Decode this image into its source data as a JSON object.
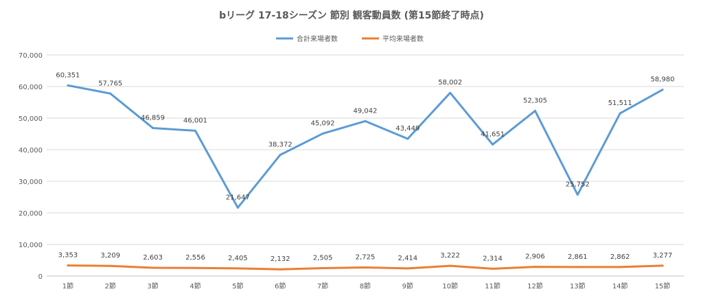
{
  "chart_data": {
    "type": "line",
    "title": "bリーグ 17-18シーズン 節別 観客動員数 (第15節終了時点)",
    "categories": [
      "1節",
      "2節",
      "3節",
      "4節",
      "5節",
      "6節",
      "7節",
      "8節",
      "9節",
      "10節",
      "11節",
      "12節",
      "13節",
      "14節",
      "15節"
    ],
    "series": [
      {
        "name": "合計来場者数",
        "color": "#5B9BD5",
        "values": [
          60351,
          57765,
          46859,
          46001,
          21647,
          38372,
          45092,
          49042,
          43449,
          58002,
          41651,
          52305,
          25752,
          51511,
          58980
        ],
        "labels": [
          "60,351",
          "57,765",
          "46,859",
          "46,001",
          "21,647",
          "38,372",
          "45,092",
          "49,042",
          "43,449",
          "58,002",
          "41,651",
          "52,305",
          "25,752",
          "51,511",
          "58,980"
        ]
      },
      {
        "name": "平均来場者数",
        "color": "#ED7D31",
        "values": [
          3353,
          3209,
          2603,
          2556,
          2405,
          2132,
          2505,
          2725,
          2414,
          3222,
          2314,
          2906,
          2861,
          2862,
          3277
        ],
        "labels": [
          "3,353",
          "3,209",
          "2,603",
          "2,556",
          "2,405",
          "2,132",
          "2,505",
          "2,725",
          "2,414",
          "3,222",
          "2,314",
          "2,906",
          "2,861",
          "2,862",
          "3,277"
        ]
      }
    ],
    "ylim": [
      0,
      70000
    ],
    "yticks": [
      0,
      10000,
      20000,
      30000,
      40000,
      50000,
      60000,
      70000
    ],
    "ytick_labels": [
      "0",
      "10,000",
      "20,000",
      "30,000",
      "40,000",
      "50,000",
      "60,000",
      "70,000"
    ],
    "grid": true,
    "legend": "top-center"
  }
}
